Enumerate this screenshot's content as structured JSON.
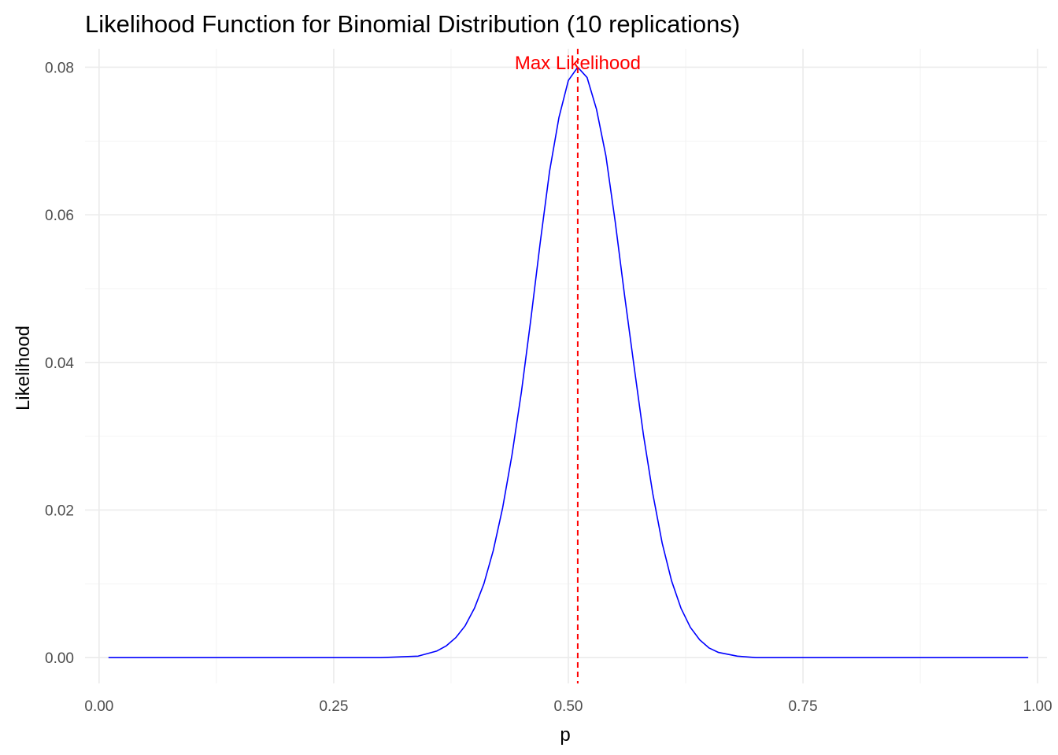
{
  "chart_data": {
    "type": "line",
    "title": "Likelihood Function for Binomial Distribution (10 replications)",
    "xlabel": "p",
    "ylabel": "Likelihood",
    "xlim": [
      -0.015,
      1.01
    ],
    "ylim": [
      -0.0035,
      0.0825
    ],
    "x_ticks": [
      0.0,
      0.25,
      0.5,
      0.75,
      1.0
    ],
    "x_tick_labels": [
      "0.00",
      "0.25",
      "0.50",
      "0.75",
      "1.00"
    ],
    "y_ticks": [
      0.0,
      0.02,
      0.04,
      0.06,
      0.08
    ],
    "y_tick_labels": [
      "0.00",
      "0.02",
      "0.04",
      "0.06",
      "0.08"
    ],
    "grid": true,
    "series": [
      {
        "color": "#0000ff",
        "x": [
          0.01,
          0.3,
          0.34,
          0.36,
          0.37,
          0.38,
          0.39,
          0.4,
          0.41,
          0.42,
          0.43,
          0.44,
          0.45,
          0.46,
          0.47,
          0.48,
          0.49,
          0.5,
          0.51,
          0.52,
          0.53,
          0.54,
          0.55,
          0.56,
          0.57,
          0.58,
          0.59,
          0.6,
          0.61,
          0.62,
          0.63,
          0.64,
          0.65,
          0.66,
          0.68,
          0.7,
          0.99
        ],
        "values": [
          0.0,
          0.0,
          0.0002,
          0.0009,
          0.0016,
          0.0027,
          0.0043,
          0.0067,
          0.01,
          0.0145,
          0.0203,
          0.0275,
          0.036,
          0.0458,
          0.0562,
          0.0659,
          0.0732,
          0.0782,
          0.08,
          0.0786,
          0.0743,
          0.068,
          0.059,
          0.049,
          0.0395,
          0.0302,
          0.0222,
          0.0155,
          0.0104,
          0.0067,
          0.0041,
          0.0024,
          0.0013,
          0.0007,
          0.0002,
          0.0,
          0.0
        ]
      }
    ],
    "max_likelihood": {
      "p": 0.51,
      "label": "Max Likelihood",
      "color": "#ff0000"
    }
  }
}
